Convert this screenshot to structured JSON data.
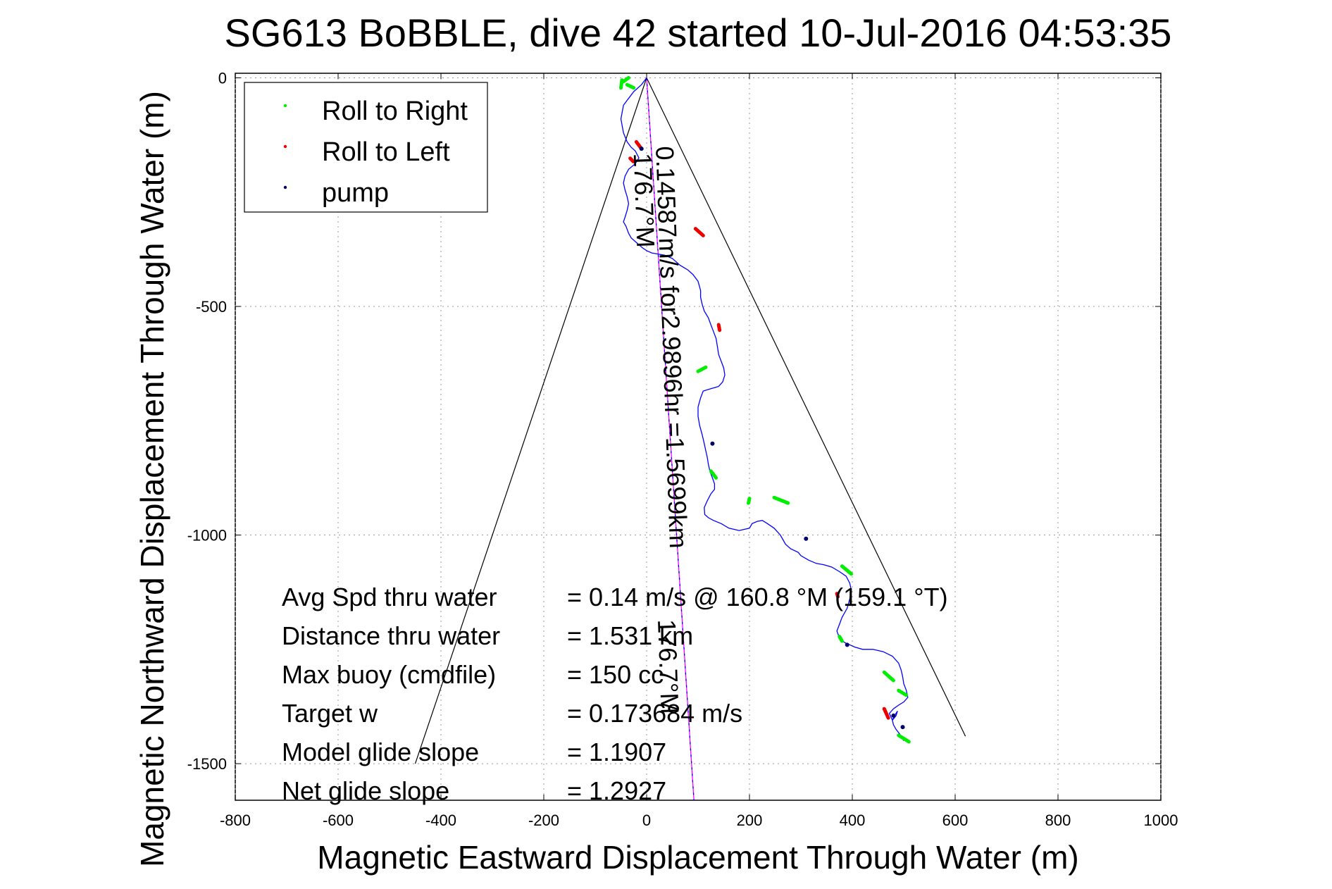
{
  "chart_data": {
    "type": "line",
    "title": "SG613 BoBBLE, dive 42 started 10-Jul-2016 04:53:35",
    "xlabel": "Magnetic Eastward Displacement Through Water (m)",
    "ylabel": "Magnetic Northward Displacement Through Water (m)",
    "xlim": [
      -800,
      1000
    ],
    "ylim": [
      -1580,
      10
    ],
    "xticks": [
      -800,
      -600,
      -400,
      -200,
      0,
      200,
      400,
      600,
      800,
      1000
    ],
    "xtick_labels": [
      "-800",
      "-600",
      "-400",
      "-200",
      "0",
      "200",
      "400",
      "600",
      "800",
      "1000"
    ],
    "yticks": [
      0,
      -500,
      -1000,
      -1500
    ],
    "ytick_labels": [
      "0",
      "-500",
      "-1000",
      "-1500"
    ],
    "grid": true,
    "legend_position": "top-left",
    "legend": [
      {
        "label": "Roll to Right",
        "color": "#00ee00"
      },
      {
        "label": "Roll to Left",
        "color": "#ee0000"
      },
      {
        "label": "pump",
        "color": "#000066"
      }
    ],
    "track": {
      "color": "#0000ff",
      "x": [
        0,
        -10,
        -25,
        -35,
        -45,
        -50,
        -45,
        -38,
        -30,
        -22,
        -15,
        -22,
        -35,
        -42,
        -45,
        -42,
        -38,
        -35,
        -38,
        -42,
        -45,
        -40,
        -35,
        -30,
        -22,
        -15,
        -8,
        0,
        10,
        20,
        35,
        50,
        65,
        80,
        90,
        100,
        105,
        105,
        108,
        112,
        120,
        125,
        130,
        135,
        138,
        140,
        145,
        150,
        152,
        148,
        140,
        125,
        110,
        105,
        100,
        100,
        103,
        108,
        112,
        115,
        118,
        120,
        123,
        128,
        132,
        132,
        125,
        118,
        112,
        113,
        120,
        130,
        145,
        160,
        180,
        200,
        205,
        215,
        225,
        235,
        248,
        260,
        265,
        270,
        280,
        295,
        300,
        315,
        330,
        345,
        360,
        375,
        388,
        395,
        398,
        395,
        390,
        380,
        375,
        370,
        375,
        385,
        395,
        405,
        420,
        440,
        460,
        478,
        490,
        495,
        498,
        500,
        505,
        508,
        500,
        490,
        480,
        472,
        478,
        485,
        488,
        482,
        478,
        480,
        485,
        492,
        500
      ],
      "y": [
        0,
        -15,
        -30,
        -45,
        -60,
        -90,
        -120,
        -140,
        -152,
        -160,
        -175,
        -188,
        -200,
        -215,
        -230,
        -245,
        -260,
        -275,
        -290,
        -305,
        -315,
        -325,
        -340,
        -350,
        -358,
        -365,
        -372,
        -378,
        -383,
        -385,
        -388,
        -395,
        -410,
        -420,
        -430,
        -445,
        -465,
        -480,
        -495,
        -510,
        -525,
        -540,
        -555,
        -570,
        -590,
        -605,
        -620,
        -635,
        -650,
        -665,
        -675,
        -680,
        -685,
        -700,
        -720,
        -740,
        -760,
        -780,
        -800,
        -815,
        -830,
        -845,
        -860,
        -875,
        -888,
        -900,
        -910,
        -925,
        -940,
        -955,
        -962,
        -968,
        -975,
        -985,
        -990,
        -985,
        -975,
        -970,
        -968,
        -975,
        -985,
        -1000,
        -1010,
        -1020,
        -1030,
        -1038,
        -1045,
        -1055,
        -1062,
        -1065,
        -1070,
        -1080,
        -1090,
        -1105,
        -1120,
        -1140,
        -1160,
        -1180,
        -1195,
        -1210,
        -1225,
        -1235,
        -1240,
        -1245,
        -1250,
        -1250,
        -1255,
        -1265,
        -1280,
        -1295,
        -1310,
        -1325,
        -1340,
        -1355,
        -1365,
        -1372,
        -1380,
        -1390,
        -1405,
        -1395,
        -1385,
        -1395,
        -1405,
        -1415,
        -1425,
        -1435,
        -1450
      ]
    },
    "markers": {
      "roll_right": {
        "color": "#00ee00",
        "segments": [
          [
            -48,
            -5,
            -50,
            -22
          ],
          [
            -45,
            -8,
            -35,
            0
          ],
          [
            -38,
            -15,
            -25,
            -22
          ],
          [
            100,
            -642,
            115,
            -633
          ],
          [
            125,
            -860,
            135,
            -875
          ],
          [
            200,
            -920,
            198,
            -930
          ],
          [
            248,
            -918,
            275,
            -930
          ],
          [
            380,
            -1068,
            398,
            -1085
          ],
          [
            375,
            -1222,
            380,
            -1232
          ],
          [
            462,
            -1300,
            480,
            -1318
          ],
          [
            490,
            -1340,
            505,
            -1350
          ],
          [
            490,
            -1438,
            510,
            -1452
          ]
        ]
      },
      "roll_left": {
        "color": "#ee0000",
        "segments": [
          [
            -20,
            -140,
            -10,
            -155
          ],
          [
            -32,
            -176,
            -26,
            -183
          ],
          [
            95,
            -330,
            110,
            -345
          ],
          [
            140,
            -540,
            142,
            -552
          ],
          [
            462,
            -1380,
            470,
            -1400
          ],
          [
            370,
            -1128,
            372,
            -1135
          ]
        ]
      },
      "pump": {
        "color": "#000066",
        "points": [
          [
            128,
            -800
          ],
          [
            -10,
            -155
          ],
          [
            310,
            -1008
          ],
          [
            390,
            -1240
          ],
          [
            480,
            -1395
          ],
          [
            498,
            -1420
          ]
        ]
      }
    },
    "reference_lines": [
      {
        "label": "cone-left",
        "color": "#000000",
        "x": [
          0,
          -450
        ],
        "y": [
          0,
          -1500
        ]
      },
      {
        "label": "cone-right",
        "color": "#000000",
        "x": [
          0,
          620
        ],
        "y": [
          0,
          -1440
        ]
      },
      {
        "label": "heading-line",
        "color": "#ff00ff",
        "x": [
          0,
          92
        ],
        "y": [
          0,
          -1580
        ]
      },
      {
        "label": "heading-line-2",
        "color": "#0000ff",
        "x": [
          0,
          92
        ],
        "y": [
          0,
          -1580
        ]
      }
    ],
    "annotations": {
      "depth_avg_label": "0.14587m/s for2.9896hr =1.5699km",
      "heading_label_1": "176.7°M",
      "heading_label_2": "176.7°M"
    }
  },
  "stats": {
    "rows": [
      {
        "label": "Avg Spd thru water",
        "value": "=  0.14 m/s @ 160.8  °M (159.1 °T)"
      },
      {
        "label": "Distance thru water",
        "value": "=  1.531 km"
      },
      {
        "label": "Max buoy (cmdfile)",
        "value": "= 150 cc"
      },
      {
        "label": "Target w",
        "value": "= 0.173684 m/s"
      },
      {
        "label": "Model glide slope",
        "value": "= 1.1907"
      },
      {
        "label": "Net glide slope",
        "value": "= 1.2927"
      }
    ]
  }
}
